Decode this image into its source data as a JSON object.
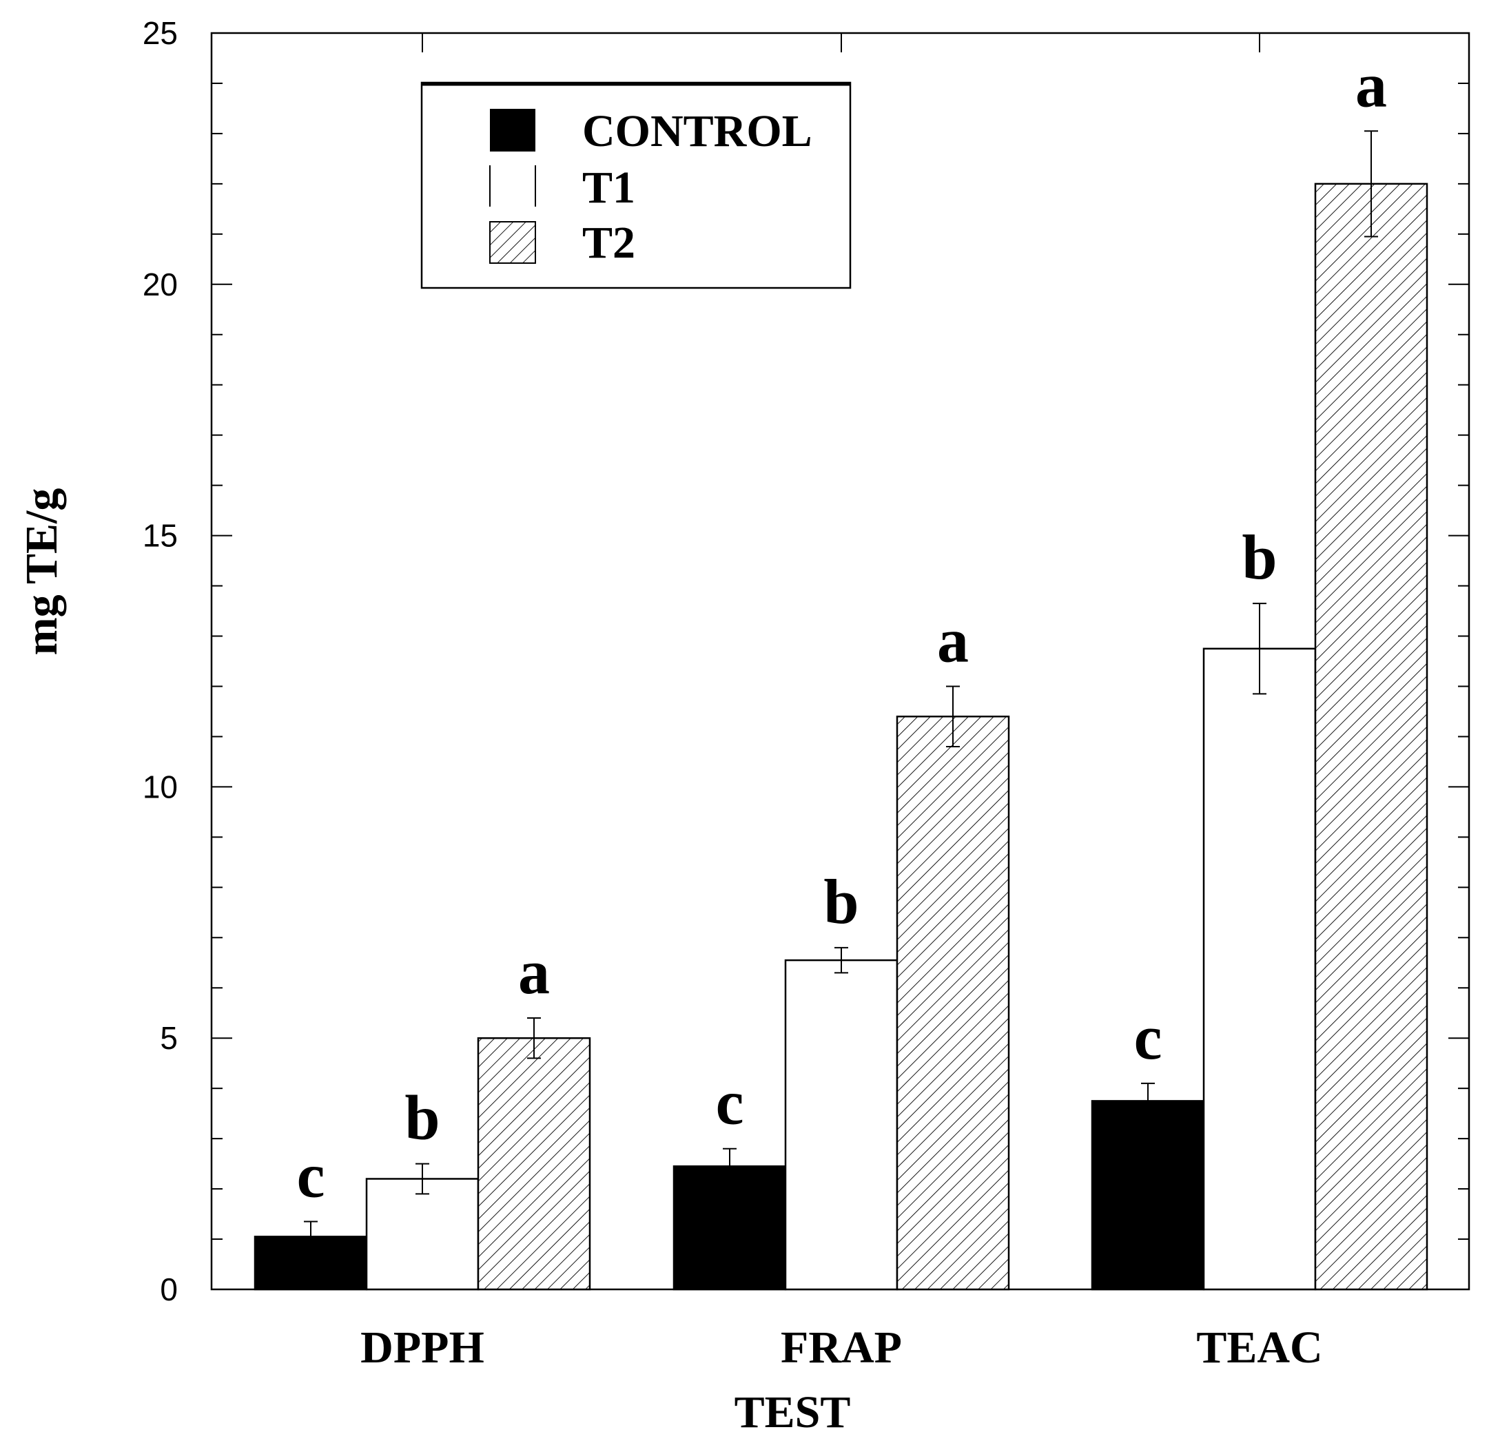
{
  "chart_data": {
    "type": "bar",
    "title": "",
    "xlabel": "TEST",
    "ylabel": "mg TE/g",
    "ylim": [
      0,
      25
    ],
    "yticks": [
      "0",
      "5",
      "10",
      "15",
      "20",
      "25"
    ],
    "categories": [
      "DPPH",
      "FRAP",
      "TEAC"
    ],
    "legend_position": "top-left",
    "series": [
      {
        "name": "CONTROL",
        "fill": "solid",
        "color": "#000000",
        "values": [
          1.05,
          2.45,
          3.75
        ],
        "errors": [
          0.3,
          0.35,
          0.35
        ],
        "letters": [
          "c",
          "c",
          "c"
        ]
      },
      {
        "name": "T1",
        "fill": "open",
        "color": "#ffffff",
        "values": [
          2.2,
          6.55,
          12.75
        ],
        "errors": [
          0.3,
          0.25,
          0.9
        ],
        "letters": [
          "b",
          "b",
          "b"
        ]
      },
      {
        "name": "T2",
        "fill": "hatched",
        "color": "#ffffff",
        "values": [
          5.0,
          11.4,
          22.0
        ],
        "errors": [
          0.4,
          0.6,
          1.05
        ],
        "letters": [
          "a",
          "a",
          "a"
        ]
      }
    ]
  }
}
